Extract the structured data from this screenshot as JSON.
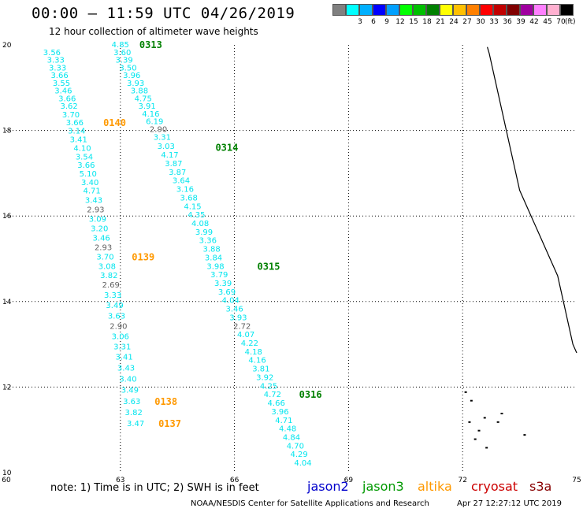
{
  "header": {
    "title": "00:00 – 11:59 UTC 04/26/2019",
    "subtitle": "12 hour collection of altimeter wave heights"
  },
  "colorbar": {
    "unit": "(ft)",
    "cells": [
      {
        "label": "",
        "color": "#808080"
      },
      {
        "label": "3",
        "color": "#00ffff"
      },
      {
        "label": "6",
        "color": "#00b0ff"
      },
      {
        "label": "9",
        "color": "#0000ff"
      },
      {
        "label": "12",
        "color": "#00a0ff"
      },
      {
        "label": "15",
        "color": "#00ff00"
      },
      {
        "label": "18",
        "color": "#00c000"
      },
      {
        "label": "21",
        "color": "#008000"
      },
      {
        "label": "24",
        "color": "#ffff00"
      },
      {
        "label": "27",
        "color": "#ffc000"
      },
      {
        "label": "30",
        "color": "#ff8000"
      },
      {
        "label": "33",
        "color": "#ff0000"
      },
      {
        "label": "36",
        "color": "#c00000"
      },
      {
        "label": "39",
        "color": "#800000"
      },
      {
        "label": "42",
        "color": "#a000a0"
      },
      {
        "label": "45",
        "color": "#ff80ff"
      },
      {
        "label": "70",
        "color": "#ffb0d0"
      },
      {
        "label": "",
        "color": "#000000"
      }
    ]
  },
  "chart_data": {
    "type": "scatter",
    "xlim": [
      60,
      75
    ],
    "ylim": [
      10,
      20
    ],
    "x_ticks": [
      "60",
      "63",
      "66",
      "69",
      "72",
      "75"
    ],
    "y_ticks": [
      "10",
      "12",
      "14",
      "16",
      "18",
      "20"
    ],
    "grid": true,
    "series": [
      {
        "name": "altika",
        "color": "#00e5ee",
        "low_color": "#606060",
        "points": [
          {
            "x": 61.2,
            "y": 19.82,
            "v": "3.56"
          },
          {
            "x": 61.3,
            "y": 19.64,
            "v": "3.33"
          },
          {
            "x": 61.35,
            "y": 19.46,
            "v": "3.33"
          },
          {
            "x": 61.4,
            "y": 19.28,
            "v": "3.66"
          },
          {
            "x": 61.45,
            "y": 19.1,
            "v": "3.55"
          },
          {
            "x": 61.5,
            "y": 18.92,
            "v": "3.46"
          },
          {
            "x": 61.6,
            "y": 18.74,
            "v": "3.66"
          },
          {
            "x": 61.65,
            "y": 18.56,
            "v": "3.62"
          },
          {
            "x": 61.7,
            "y": 18.36,
            "v": "3.70"
          },
          {
            "x": 61.8,
            "y": 18.18,
            "v": "3.66"
          },
          {
            "x": 61.85,
            "y": 17.98,
            "v": "3.14"
          },
          {
            "x": 61.9,
            "y": 17.78,
            "v": "3.41"
          },
          {
            "x": 62.0,
            "y": 17.58,
            "v": "4.10"
          },
          {
            "x": 62.05,
            "y": 17.38,
            "v": "3.54"
          },
          {
            "x": 62.1,
            "y": 17.18,
            "v": "3.66"
          },
          {
            "x": 62.15,
            "y": 16.98,
            "v": "5.10"
          },
          {
            "x": 62.2,
            "y": 16.78,
            "v": "3.40"
          },
          {
            "x": 62.25,
            "y": 16.58,
            "v": "4.71"
          },
          {
            "x": 62.3,
            "y": 16.36,
            "v": "3.43"
          },
          {
            "x": 62.35,
            "y": 16.14,
            "v": "2.93"
          },
          {
            "x": 62.4,
            "y": 15.92,
            "v": "3.09"
          },
          {
            "x": 62.45,
            "y": 15.7,
            "v": "3.20"
          },
          {
            "x": 62.5,
            "y": 15.48,
            "v": "3.46"
          },
          {
            "x": 62.55,
            "y": 15.26,
            "v": "2.93"
          },
          {
            "x": 62.6,
            "y": 15.04,
            "v": "3.70"
          },
          {
            "x": 62.65,
            "y": 14.82,
            "v": "3.08"
          },
          {
            "x": 62.7,
            "y": 14.6,
            "v": "3.82"
          },
          {
            "x": 62.75,
            "y": 14.38,
            "v": "2.69"
          },
          {
            "x": 62.8,
            "y": 14.14,
            "v": "3.33"
          },
          {
            "x": 62.85,
            "y": 13.9,
            "v": "3.49"
          },
          {
            "x": 62.9,
            "y": 13.66,
            "v": "3.63"
          },
          {
            "x": 62.95,
            "y": 13.42,
            "v": "2.90"
          },
          {
            "x": 63.0,
            "y": 13.18,
            "v": "3.06"
          },
          {
            "x": 63.05,
            "y": 12.94,
            "v": "3.31"
          },
          {
            "x": 63.1,
            "y": 12.7,
            "v": "3.41"
          },
          {
            "x": 63.15,
            "y": 12.44,
            "v": "3.43"
          },
          {
            "x": 63.2,
            "y": 12.18,
            "v": "3.40"
          },
          {
            "x": 63.25,
            "y": 11.92,
            "v": "3.49"
          },
          {
            "x": 63.3,
            "y": 11.66,
            "v": "3.63"
          },
          {
            "x": 63.35,
            "y": 11.4,
            "v": "3.82"
          },
          {
            "x": 63.4,
            "y": 11.14,
            "v": "3.47"
          }
        ]
      },
      {
        "name": "jason3",
        "color": "#00e5ee",
        "low_color": "#606060",
        "points": [
          {
            "x": 63.0,
            "y": 20.0,
            "v": "4.85"
          },
          {
            "x": 63.05,
            "y": 19.82,
            "v": "3.60"
          },
          {
            "x": 63.1,
            "y": 19.64,
            "v": "3.39"
          },
          {
            "x": 63.2,
            "y": 19.46,
            "v": "3.50"
          },
          {
            "x": 63.3,
            "y": 19.28,
            "v": "3.96"
          },
          {
            "x": 63.4,
            "y": 19.1,
            "v": "3.93"
          },
          {
            "x": 63.5,
            "y": 18.92,
            "v": "3.88"
          },
          {
            "x": 63.6,
            "y": 18.74,
            "v": "4.75"
          },
          {
            "x": 63.7,
            "y": 18.56,
            "v": "3.91"
          },
          {
            "x": 63.8,
            "y": 18.38,
            "v": "4.16"
          },
          {
            "x": 63.9,
            "y": 18.2,
            "v": "6.19"
          },
          {
            "x": 64.0,
            "y": 18.02,
            "v": "2.90"
          },
          {
            "x": 64.1,
            "y": 17.84,
            "v": "3.31"
          },
          {
            "x": 64.2,
            "y": 17.62,
            "v": "3.03"
          },
          {
            "x": 64.3,
            "y": 17.42,
            "v": "4.17"
          },
          {
            "x": 64.4,
            "y": 17.22,
            "v": "3.87"
          },
          {
            "x": 64.5,
            "y": 17.02,
            "v": "3.87"
          },
          {
            "x": 64.6,
            "y": 16.82,
            "v": "3.64"
          },
          {
            "x": 64.7,
            "y": 16.62,
            "v": "3.16"
          },
          {
            "x": 64.8,
            "y": 16.42,
            "v": "3.68"
          },
          {
            "x": 64.9,
            "y": 16.22,
            "v": "4.15"
          },
          {
            "x": 65.0,
            "y": 16.02,
            "v": "4.35"
          },
          {
            "x": 65.1,
            "y": 15.82,
            "v": "4.08"
          },
          {
            "x": 65.2,
            "y": 15.62,
            "v": "3.99"
          },
          {
            "x": 65.3,
            "y": 15.42,
            "v": "3.36"
          },
          {
            "x": 65.4,
            "y": 15.22,
            "v": "3.88"
          },
          {
            "x": 65.45,
            "y": 15.02,
            "v": "3.84"
          },
          {
            "x": 65.5,
            "y": 14.82,
            "v": "3.98"
          },
          {
            "x": 65.6,
            "y": 14.62,
            "v": "3.79"
          },
          {
            "x": 65.7,
            "y": 14.42,
            "v": "3.39"
          },
          {
            "x": 65.8,
            "y": 14.22,
            "v": "3.69"
          },
          {
            "x": 65.9,
            "y": 14.02,
            "v": "4.04"
          },
          {
            "x": 66.0,
            "y": 13.82,
            "v": "3.46"
          },
          {
            "x": 66.1,
            "y": 13.62,
            "v": "3.93"
          },
          {
            "x": 66.2,
            "y": 13.42,
            "v": "2.72"
          },
          {
            "x": 66.3,
            "y": 13.22,
            "v": "4.07"
          },
          {
            "x": 66.4,
            "y": 13.02,
            "v": "4.22"
          },
          {
            "x": 66.5,
            "y": 12.82,
            "v": "4.18"
          },
          {
            "x": 66.6,
            "y": 12.62,
            "v": "4.16"
          },
          {
            "x": 66.7,
            "y": 12.42,
            "v": "3.81"
          },
          {
            "x": 66.8,
            "y": 12.22,
            "v": "3.92"
          },
          {
            "x": 66.9,
            "y": 12.02,
            "v": "4.25"
          },
          {
            "x": 67.0,
            "y": 11.82,
            "v": "4.72"
          },
          {
            "x": 67.1,
            "y": 11.62,
            "v": "4.66"
          },
          {
            "x": 67.2,
            "y": 11.42,
            "v": "3.96"
          },
          {
            "x": 67.3,
            "y": 11.22,
            "v": "4.71"
          },
          {
            "x": 67.4,
            "y": 11.02,
            "v": "4.48"
          },
          {
            "x": 67.5,
            "y": 10.82,
            "v": "4.84"
          },
          {
            "x": 67.6,
            "y": 10.62,
            "v": "4.70"
          },
          {
            "x": 67.7,
            "y": 10.42,
            "v": "4.29"
          },
          {
            "x": 67.8,
            "y": 10.22,
            "v": "4.04"
          }
        ]
      }
    ],
    "annotations": [
      {
        "text": "0313",
        "x": 63.5,
        "y": 20.0,
        "color": "#008000"
      },
      {
        "text": "0314",
        "x": 65.5,
        "y": 17.6,
        "color": "#008000"
      },
      {
        "text": "0315",
        "x": 66.6,
        "y": 14.82,
        "color": "#008000"
      },
      {
        "text": "0316",
        "x": 67.7,
        "y": 11.82,
        "color": "#008000"
      },
      {
        "text": "0140",
        "x": 62.55,
        "y": 18.18,
        "color": "#ff9900"
      },
      {
        "text": "0139",
        "x": 63.3,
        "y": 15.04,
        "color": "#ff9900"
      },
      {
        "text": "0138",
        "x": 63.9,
        "y": 11.66,
        "color": "#ff9900"
      },
      {
        "text": "0137",
        "x": 64.0,
        "y": 11.14,
        "color": "#ff9900"
      }
    ]
  },
  "footer": {
    "note": "note:  1) Time is in UTC;  2) SWH is in feet",
    "legend": [
      {
        "label": "jason2",
        "color": "#0000cc"
      },
      {
        "label": "jason3",
        "color": "#009900"
      },
      {
        "label": "altika",
        "color": "#ff9900"
      },
      {
        "label": "cryosat",
        "color": "#cc0000"
      },
      {
        "label": "s3a",
        "color": "#880000"
      }
    ],
    "credit": "NOAA/NESDIS Center for Satellite Applications and Research",
    "timestamp": "Apr 27 12:27:12 UTC 2019"
  }
}
